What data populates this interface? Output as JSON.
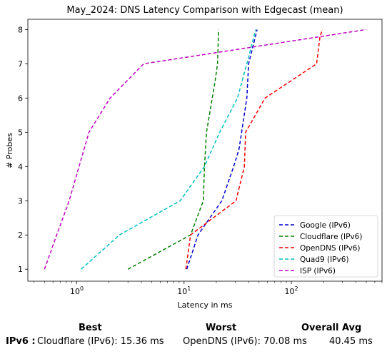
{
  "chart_data": {
    "type": "line",
    "title": "May_2024: DNS Latency Comparison with Edgecast (mean)",
    "xlabel": "Latency in ms",
    "ylabel": "# Probes",
    "xscale": "log",
    "xlim": [
      0.35,
      700
    ],
    "ylim": [
      0.65,
      8.3
    ],
    "x_ticks": [
      {
        "value": 1,
        "label": "10^0"
      },
      {
        "value": 10,
        "label": "10^1"
      },
      {
        "value": 100,
        "label": "10^2"
      }
    ],
    "y_ticks": [
      1,
      2,
      3,
      4,
      5,
      6,
      7,
      8
    ],
    "legend_position": "lower-right",
    "grid": false,
    "series": [
      {
        "name": "Google (IPv6)",
        "color": "#0000cc",
        "points": [
          [
            10.6,
            1
          ],
          [
            13.5,
            2
          ],
          [
            22.5,
            3
          ],
          [
            29,
            4
          ],
          [
            32.5,
            4.5
          ],
          [
            38.5,
            6
          ],
          [
            40,
            7
          ],
          [
            48,
            8
          ]
        ]
      },
      {
        "name": "Cloudflare (IPv6)",
        "color": "#007f00",
        "points": [
          [
            3.0,
            1
          ],
          [
            11.5,
            2
          ],
          [
            15.1,
            3
          ],
          [
            15.5,
            4
          ],
          [
            16.2,
            5
          ],
          [
            19.5,
            6.5
          ],
          [
            20.5,
            7
          ],
          [
            21,
            8
          ]
        ]
      },
      {
        "name": "OpenDNS (IPv6)",
        "color": "#ff0000",
        "points": [
          [
            10.4,
            1
          ],
          [
            11.5,
            2
          ],
          [
            30.5,
            3
          ],
          [
            36.5,
            4
          ],
          [
            37.5,
            5
          ],
          [
            57,
            6
          ],
          [
            172,
            7
          ],
          [
            185,
            7.8
          ],
          [
            195,
            8
          ]
        ]
      },
      {
        "name": "Quad9 (IPv6)",
        "color": "#00bfbf",
        "points": [
          [
            1.1,
            1
          ],
          [
            2.5,
            2
          ],
          [
            9.2,
            3
          ],
          [
            15.5,
            4
          ],
          [
            21.5,
            5
          ],
          [
            31.5,
            6
          ],
          [
            38.5,
            7
          ],
          [
            46.5,
            8
          ]
        ]
      },
      {
        "name": "ISP (IPv6)",
        "color": "#bf00bf",
        "points": [
          [
            0.5,
            1
          ],
          [
            0.65,
            2
          ],
          [
            0.85,
            3
          ],
          [
            1.05,
            4
          ],
          [
            1.3,
            5
          ],
          [
            2.05,
            6
          ],
          [
            4.2,
            7
          ],
          [
            500,
            8
          ]
        ]
      }
    ]
  },
  "summary": {
    "headers": {
      "best": "Best",
      "worst": "Worst",
      "avg": "Overall Avg"
    },
    "row_label": "IPv6 :",
    "best": "Cloudflare (IPv6): 15.36 ms",
    "worst": "OpenDNS (IPv6): 70.08 ms",
    "avg": "40.45 ms"
  }
}
